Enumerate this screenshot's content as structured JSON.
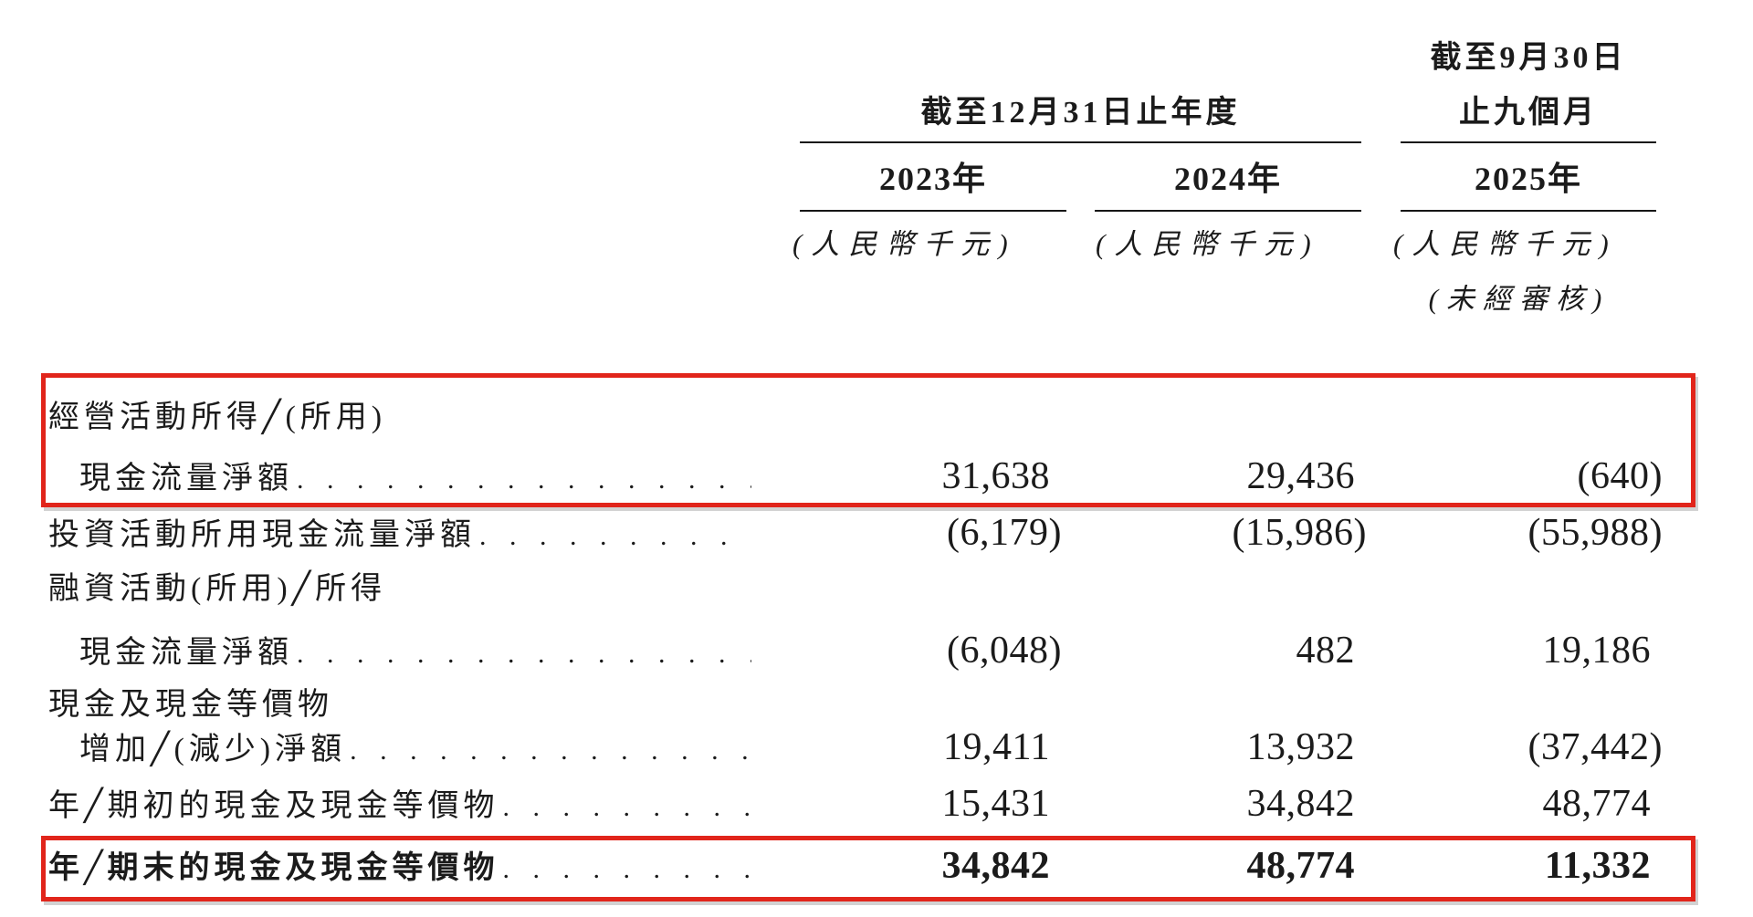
{
  "colors": {
    "highlight_red": "#e1251b",
    "text": "#1b1b1b"
  },
  "header": {
    "annual_title": "截至12月31日止年度",
    "interim_title_line1": "截至9月30日",
    "interim_title_line2": "止九個月",
    "years": [
      "2023年",
      "2024年",
      "2025年"
    ],
    "units": [
      "(人民幣千元)",
      "(人民幣千元)",
      "(人民幣千元)"
    ],
    "unaudited_note": "(未經審核)"
  },
  "table": {
    "rows": [
      {
        "label": "經營活動所得╱(所用)",
        "indent": false,
        "dots": false,
        "values": null,
        "bold": false,
        "highlighted": true
      },
      {
        "label": "現金流量淨額",
        "indent": true,
        "dots": true,
        "values": [
          "31,638",
          "29,436",
          "(640)"
        ],
        "bold": false,
        "highlighted": true
      },
      {
        "label": "投資活動所用現金流量淨額",
        "indent": false,
        "dots": true,
        "values": [
          "(6,179)",
          "(15,986)",
          "(55,988)"
        ],
        "bold": false,
        "highlighted": false
      },
      {
        "label": "融資活動(所用)╱所得",
        "indent": false,
        "dots": false,
        "values": null,
        "bold": false,
        "highlighted": false
      },
      {
        "label": "現金流量淨額",
        "indent": true,
        "dots": true,
        "values": [
          "(6,048)",
          "482",
          "19,186"
        ],
        "bold": false,
        "highlighted": false
      },
      {
        "label": "現金及現金等價物",
        "indent": false,
        "dots": false,
        "values": null,
        "bold": false,
        "highlighted": false
      },
      {
        "label": "增加╱(減少)淨額",
        "indent": true,
        "dots": true,
        "values": [
          "19,411",
          "13,932",
          "(37,442)"
        ],
        "bold": false,
        "highlighted": false
      },
      {
        "label": "年╱期初的現金及現金等價物",
        "indent": false,
        "dots": true,
        "values": [
          "15,431",
          "34,842",
          "48,774"
        ],
        "bold": false,
        "highlighted": false
      },
      {
        "label": "年╱期末的現金及現金等價物",
        "indent": false,
        "dots": true,
        "values": [
          "34,842",
          "48,774",
          "11,332"
        ],
        "bold": true,
        "highlighted": true
      }
    ]
  }
}
